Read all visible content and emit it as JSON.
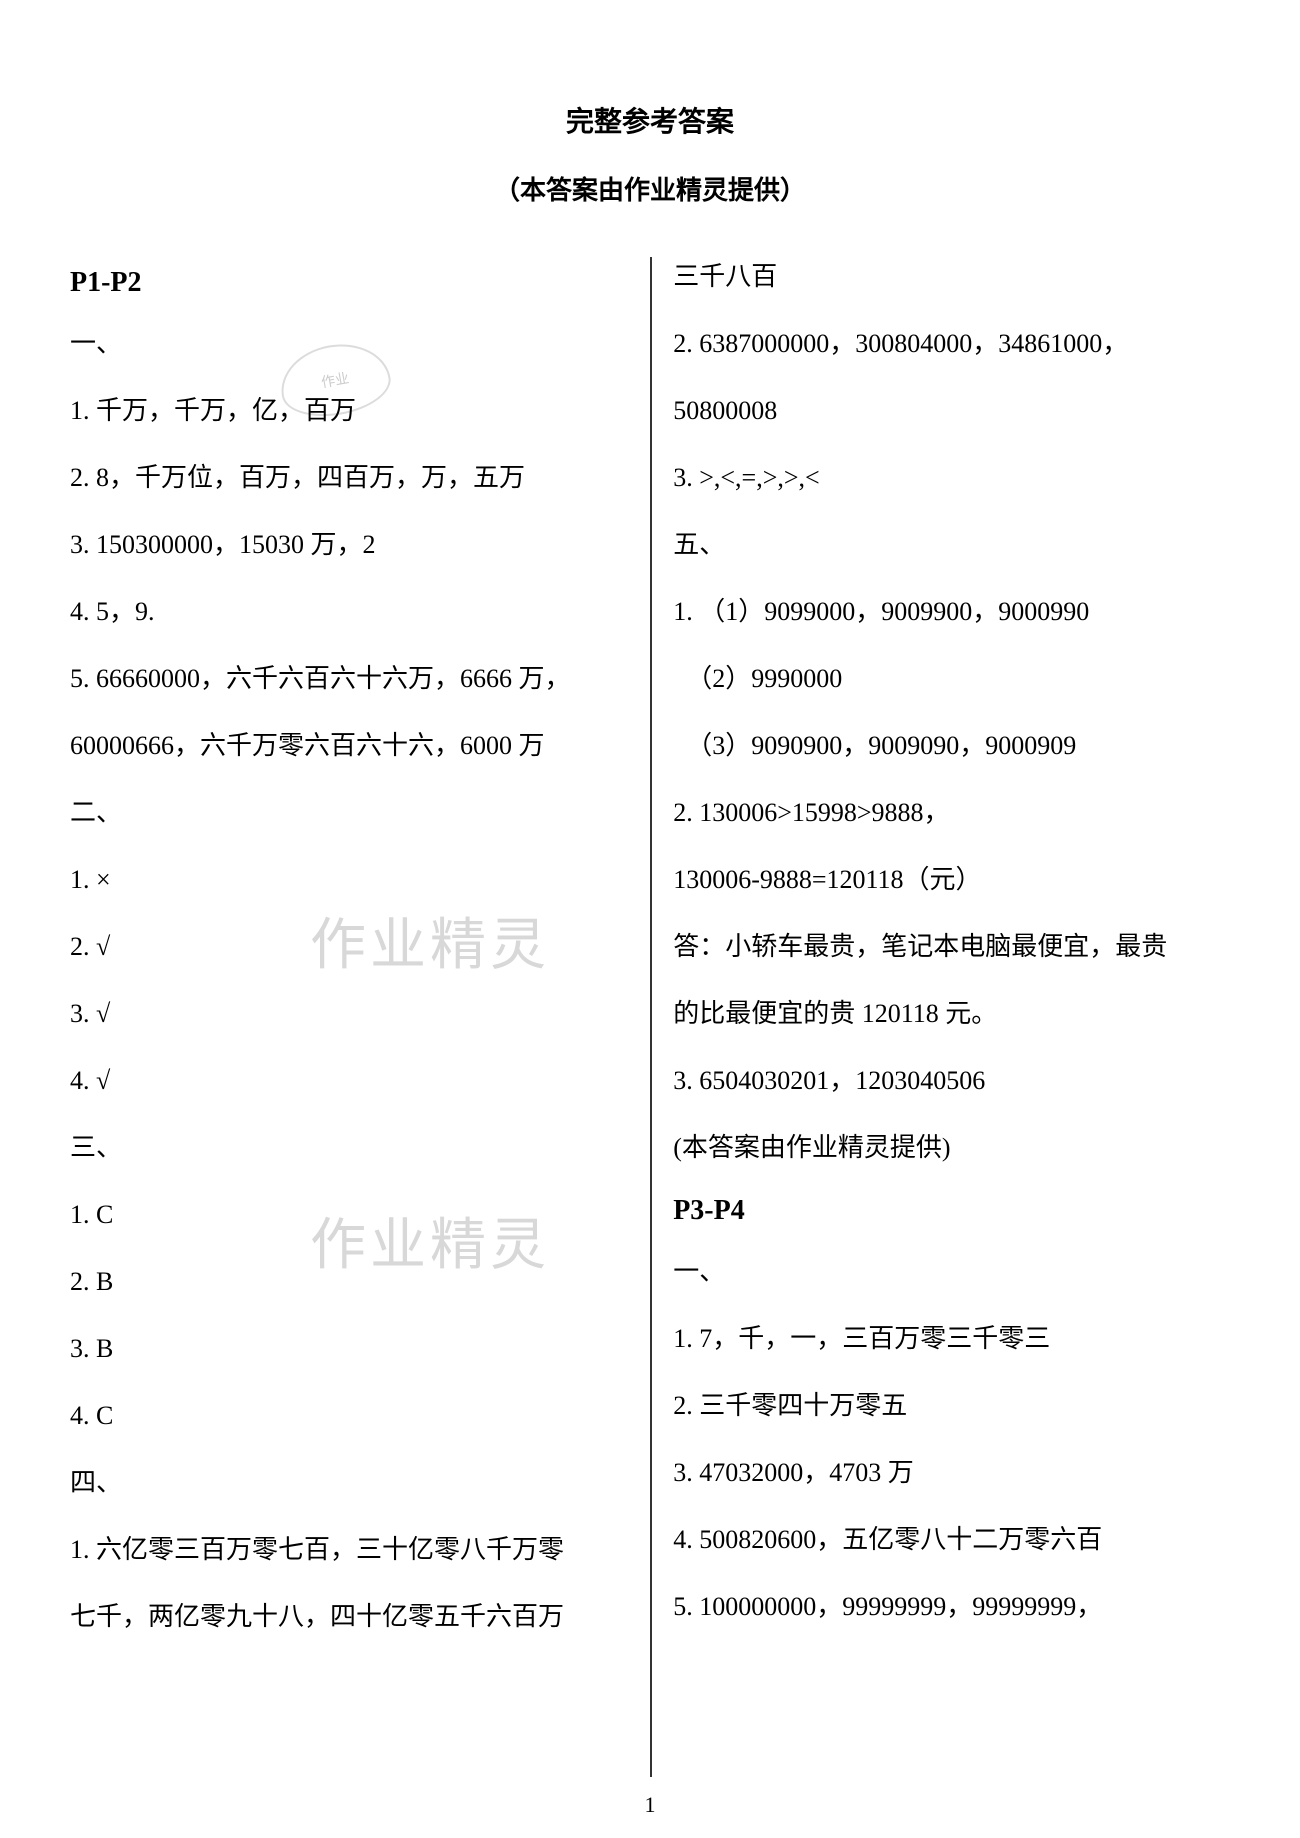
{
  "title": "完整参考答案",
  "subtitle": "（本答案由作业精灵提供）",
  "leftColumn": {
    "p1p2_heading": "P1-P2",
    "sec1_heading": "一、",
    "sec1_item1": "1. 千万，千万，亿，百万",
    "sec1_item2": "2. 8，千万位，百万，四百万，万，五万",
    "sec1_item3": "3. 150300000，15030 万，2",
    "sec1_item4": "4. 5，9.",
    "sec1_item5": "5. 66660000，六千六百六十六万，6666 万，",
    "sec1_item5b": "60000666，六千万零六百六十六，6000 万",
    "sec2_heading": "二、",
    "sec2_item1": "1. ×",
    "sec2_item2": "2. √",
    "sec2_item3": "3. √",
    "sec2_item4": "4. √",
    "sec3_heading": "三、",
    "sec3_item1": "1. C",
    "sec3_item2": "2. B",
    "sec3_item3": "3. B",
    "sec3_item4": "4. C",
    "sec4_heading": "四、",
    "sec4_item1": "1. 六亿零三百万零七百，三十亿零八千万零",
    "sec4_item1b": "七千，两亿零九十八，四十亿零五千六百万"
  },
  "rightColumn": {
    "cont_line1": "三千八百",
    "cont_item2": "2. 6387000000，300804000，34861000，",
    "cont_item2b": "50800008",
    "cont_item3": "3. >,<,=,>,>,<",
    "sec5_heading": "五、",
    "sec5_item1": "1. （1）9099000，9009900，9000990",
    "sec5_item1b": "　（2）9990000",
    "sec5_item1c": "　（3）9090900，9009090，9000909",
    "sec5_item2": "2. 130006>15998>9888，",
    "sec5_item2b": "130006-9888=120118（元）",
    "sec5_item2c": "答：小轿车最贵，笔记本电脑最便宜，最贵",
    "sec5_item2d": "的比最便宜的贵 120118 元。",
    "sec5_item3": "3. 6504030201，1203040506",
    "provider": "(本答案由作业精灵提供)",
    "p3p4_heading": "P3-P4",
    "p3_sec1_heading": "一、",
    "p3_sec1_item1": "1. 7，千，一，三百万零三千零三",
    "p3_sec1_item2": "2. 三千零四十万零五",
    "p3_sec1_item3": "3. 47032000，4703 万",
    "p3_sec1_item4": "4. 500820600，五亿零八十二万零六百",
    "p3_sec1_item5": "5. 100000000，99999999，99999999，"
  },
  "pageNumber": "1",
  "watermark_text": "作业精灵",
  "stamp_text": "作业"
}
